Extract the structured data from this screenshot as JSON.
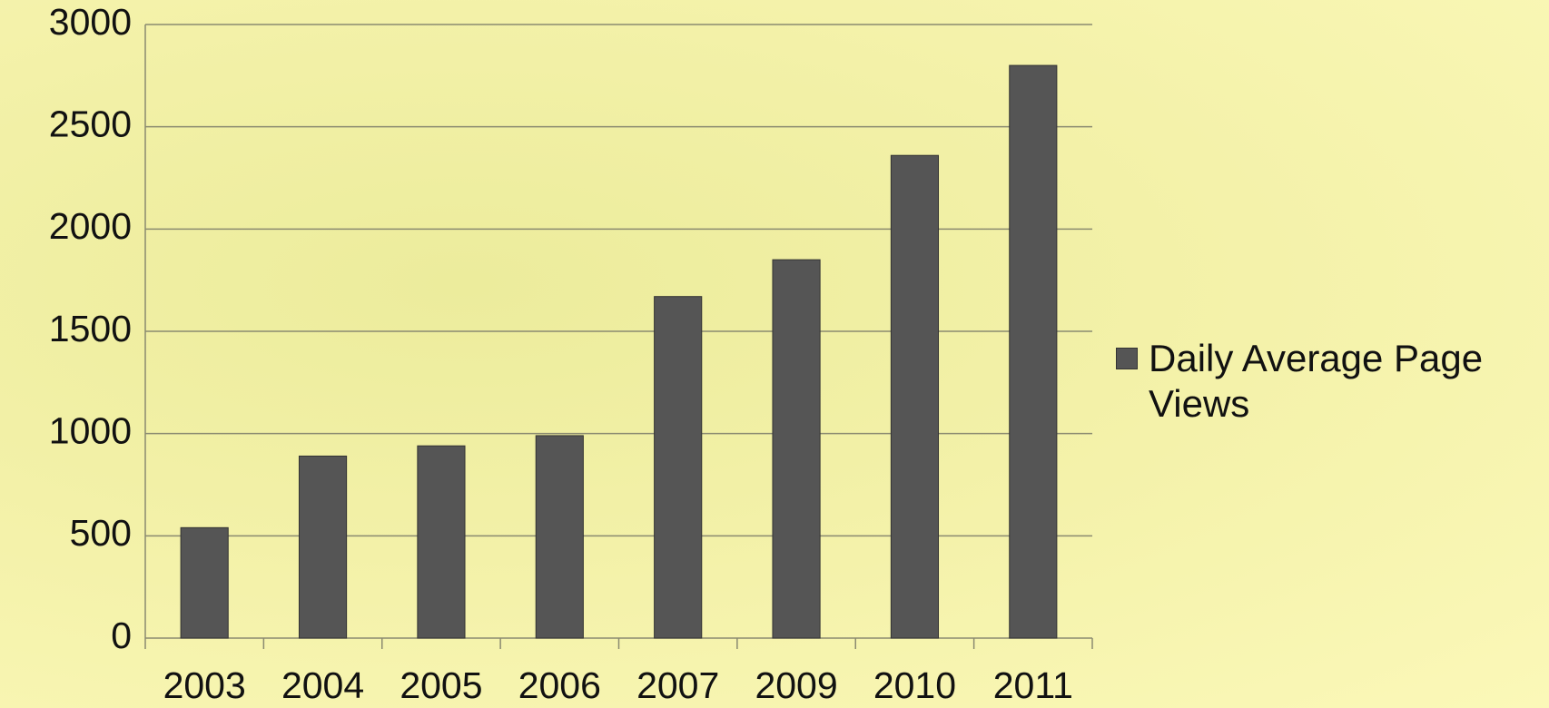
{
  "chart_data": {
    "type": "bar",
    "categories": [
      "2003",
      "2004",
      "2005",
      "2006",
      "2007",
      "2009",
      "2010",
      "2011"
    ],
    "series": [
      {
        "name": "Daily Average Page Views",
        "color": "#555555",
        "values": [
          540,
          890,
          940,
          990,
          1670,
          1850,
          2360,
          2800
        ]
      }
    ],
    "ylim": [
      0,
      3000
    ],
    "yticks": [
      0,
      500,
      1000,
      1500,
      2000,
      2500,
      3000
    ],
    "grid": true,
    "legend": "right"
  }
}
